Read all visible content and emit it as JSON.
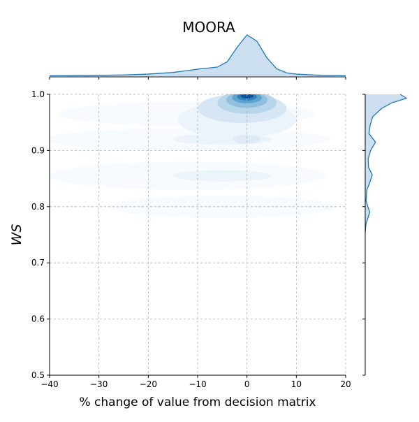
{
  "chart_data": {
    "type": "joint-kde",
    "title": "MOORA",
    "xlabel": "% change of value from decision matrix",
    "ylabel": "WS",
    "xlim": [
      -40,
      20
    ],
    "ylim": [
      0.5,
      1.0
    ],
    "xticks": [
      "−40",
      "−30",
      "−20",
      "−10",
      "0",
      "10",
      "20"
    ],
    "xtick_values": [
      -40,
      -30,
      -20,
      -10,
      0,
      10,
      20
    ],
    "yticks": [
      "0.5",
      "0.6",
      "0.7",
      "0.8",
      "0.9",
      "1.0"
    ],
    "ytick_values": [
      0.5,
      0.6,
      0.7,
      0.8,
      0.9,
      1.0
    ],
    "grid": true,
    "grid_style": "dashed",
    "colormap": "Blues",
    "line_color": "#1f77b4",
    "fill_color": "#c6dbef",
    "marginal_x": {
      "x": [
        -40,
        -30,
        -25,
        -20,
        -15,
        -10,
        -6,
        -4,
        -2,
        0,
        2,
        4,
        6,
        8,
        10,
        15,
        20
      ],
      "density": [
        0.01,
        0.02,
        0.03,
        0.05,
        0.09,
        0.17,
        0.22,
        0.35,
        0.7,
        1.0,
        0.85,
        0.45,
        0.18,
        0.08,
        0.05,
        0.02,
        0.01
      ]
    },
    "marginal_y": {
      "y": [
        0.755,
        0.77,
        0.79,
        0.81,
        0.83,
        0.845,
        0.857,
        0.87,
        0.885,
        0.9,
        0.915,
        0.93,
        0.945,
        0.96,
        0.975,
        0.985,
        0.993,
        1.0
      ],
      "density": [
        0.0,
        0.02,
        0.11,
        0.02,
        0.04,
        0.12,
        0.17,
        0.08,
        0.07,
        0.13,
        0.25,
        0.09,
        0.12,
        0.18,
        0.4,
        0.65,
        1.0,
        0.85
      ]
    },
    "density_levels": [
      {
        "level": 1,
        "color": "#f7fbff",
        "cx": -12,
        "cy": 0.965,
        "rx": 26,
        "ry": 0.022
      },
      {
        "level": 1,
        "color": "#f7fbff",
        "cx": -12,
        "cy": 0.92,
        "rx": 29,
        "ry": 0.02
      },
      {
        "level": 1,
        "color": "#f7fbff",
        "cx": -12,
        "cy": 0.855,
        "rx": 28,
        "ry": 0.025
      },
      {
        "level": 1,
        "color": "#f7fbff",
        "cx": -5,
        "cy": 0.8,
        "rx": 23,
        "ry": 0.02
      },
      {
        "level": 2,
        "color": "#eaf3fb",
        "cx": -2,
        "cy": 0.955,
        "rx": 12,
        "ry": 0.032
      },
      {
        "level": 2,
        "color": "#eaf3fb",
        "cx": -5,
        "cy": 0.92,
        "rx": 10,
        "ry": 0.01
      },
      {
        "level": 2,
        "color": "#eaf3fb",
        "cx": -5,
        "cy": 0.855,
        "rx": 10,
        "ry": 0.01
      },
      {
        "level": 3,
        "color": "#d5e5f4",
        "cx": -1,
        "cy": 0.975,
        "rx": 9,
        "ry": 0.026
      },
      {
        "level": 4,
        "color": "#b6d4e9",
        "cx": 0,
        "cy": 0.985,
        "rx": 6,
        "ry": 0.02
      },
      {
        "level": 5,
        "color": "#8dbfdd",
        "cx": 0,
        "cy": 0.99,
        "rx": 4.2,
        "ry": 0.014
      },
      {
        "level": 6,
        "color": "#5aa2cf",
        "cx": 0,
        "cy": 0.994,
        "rx": 3.0,
        "ry": 0.01
      },
      {
        "level": 7,
        "color": "#2e7ebc",
        "cx": 0,
        "cy": 0.996,
        "rx": 2.0,
        "ry": 0.007
      },
      {
        "level": 8,
        "color": "#0b4f97",
        "cx": 0,
        "cy": 0.997,
        "rx": 1.3,
        "ry": 0.004
      },
      {
        "level": 3,
        "color": "#dde9f5",
        "cx": 0,
        "cy": 0.92,
        "rx": 2.8,
        "ry": 0.008
      }
    ]
  }
}
